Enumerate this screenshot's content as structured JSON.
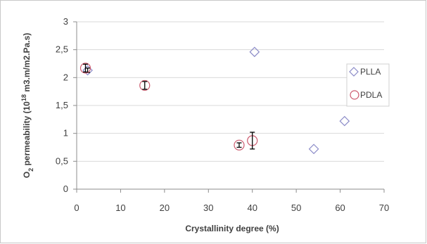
{
  "chart_data": {
    "type": "scatter",
    "title": "",
    "xlabel": "Crystallinity degree (%)",
    "ylabel": {
      "prefix": "O",
      "sub": "2",
      "middle": " permeability (10",
      "sup": "18",
      "suffix": " m3.m/m2.Pa.s)"
    },
    "xlim": [
      0,
      70
    ],
    "ylim": [
      0,
      3
    ],
    "x_ticks": [
      0,
      10,
      20,
      30,
      40,
      50,
      60,
      70
    ],
    "x_tick_labels": [
      "0",
      "10",
      "20",
      "30",
      "40",
      "50",
      "60",
      "70"
    ],
    "y_ticks": [
      0,
      0.5,
      1,
      1.5,
      2,
      2.5,
      3
    ],
    "y_tick_labels": [
      "0",
      "0,5",
      "1",
      "1,5",
      "2",
      "2,5",
      "3"
    ],
    "grid": "horizontal",
    "legend_position": "right",
    "series": [
      {
        "name": "PLLA",
        "marker": "diamond",
        "color": "#8c8cc8",
        "points": [
          {
            "x": 2.5,
            "y": 2.13,
            "err": 0.04
          },
          {
            "x": 40.5,
            "y": 2.46,
            "err": 0
          },
          {
            "x": 54,
            "y": 0.72,
            "err": 0
          },
          {
            "x": 61,
            "y": 1.22,
            "err": 0
          }
        ]
      },
      {
        "name": "PDLA",
        "marker": "circle",
        "color": "#cc5a6e",
        "points": [
          {
            "x": 2,
            "y": 2.17,
            "err": 0.07
          },
          {
            "x": 15.5,
            "y": 1.86,
            "err": 0.07
          },
          {
            "x": 37,
            "y": 0.79,
            "err": 0.04
          },
          {
            "x": 40,
            "y": 0.87,
            "err": 0.15
          }
        ]
      }
    ]
  }
}
